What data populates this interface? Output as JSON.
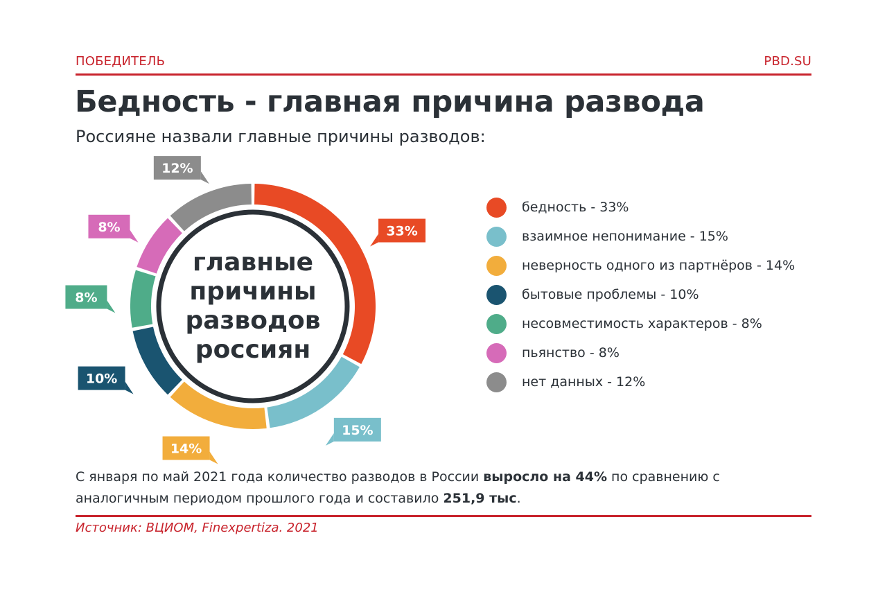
{
  "header": {
    "left": "ПОБЕДИТЕЛЬ",
    "right": "PBD.SU"
  },
  "title": "Бедность - главная причина развода",
  "subtitle": "Россияне назвали главные причины разводов:",
  "center_text": [
    "главные",
    "причины",
    "разводов",
    "россиян"
  ],
  "colors": {
    "accent": "#c8232c",
    "text": "#2b3137"
  },
  "chart_data": {
    "type": "pie",
    "donut": true,
    "categories": [
      "бедность",
      "взаимное непонимание",
      "неверность одного из партнёров",
      "бытовые проблемы",
      "несовместимость характеров",
      "пьянство",
      "нет данных"
    ],
    "values": [
      33,
      15,
      14,
      10,
      8,
      8,
      12
    ],
    "labels": [
      "33%",
      "15%",
      "14%",
      "10%",
      "8%",
      "8%",
      "12%"
    ],
    "legend": [
      "бедность - 33%",
      "взаимное непонимание - 15%",
      "неверность одного из партнёров - 14%",
      "бытовые проблемы - 10%",
      "несовместимость характеров - 8%",
      "пьянство - 8%",
      "нет данных - 12%"
    ],
    "colors": [
      "#e84a25",
      "#79bfcb",
      "#f2ad3c",
      "#1a5470",
      "#4fac89",
      "#d66bb8",
      "#8c8c8c"
    ],
    "legend_position": "right"
  },
  "note": {
    "part1": "С января по май 2021 года количество разводов в России ",
    "bold1": "выросло на 44%",
    "part2": " по сравнению с аналогичным периодом прошлого года и составило ",
    "bold2": "251,9 тыс",
    "part3": "."
  },
  "source": "Источник: ВЦИОМ, Finexpertiza. 2021"
}
